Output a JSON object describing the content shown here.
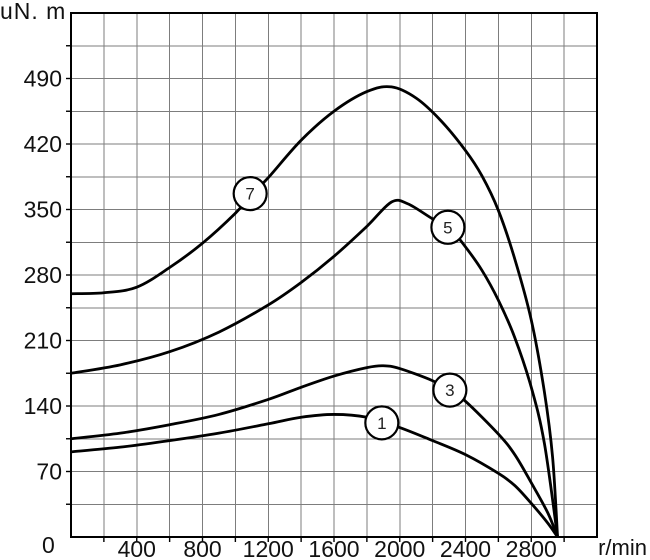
{
  "chart_data": {
    "type": "line",
    "title": "",
    "ylabel": "uN. m",
    "xlabel": "r/min",
    "origin_label": "0",
    "xlim": [
      0,
      3200
    ],
    "ylim": [
      0,
      560
    ],
    "x_grid_step": 200,
    "y_grid_step": 35,
    "grid": true,
    "legend_position": "none",
    "x_ticks": [
      400,
      800,
      1200,
      1600,
      2000,
      2400,
      2800
    ],
    "y_ticks": [
      70,
      140,
      210,
      280,
      350,
      420,
      490
    ],
    "colors": {
      "curve": "#000000",
      "grid": "#7d7d7d",
      "border": "#000000",
      "background": "#ffffff",
      "text": "#111111",
      "marker_fill": "#ffffff"
    },
    "series": [
      {
        "id": "1",
        "label": "1",
        "marker_at": [
          1891,
          122
        ],
        "points": [
          [
            0,
            91
          ],
          [
            300,
            96
          ],
          [
            600,
            103
          ],
          [
            900,
            111
          ],
          [
            1200,
            121
          ],
          [
            1400,
            128
          ],
          [
            1600,
            131
          ],
          [
            1800,
            128
          ],
          [
            2000,
            117
          ],
          [
            2200,
            103
          ],
          [
            2400,
            88
          ],
          [
            2600,
            68
          ],
          [
            2700,
            55
          ],
          [
            2800,
            36
          ],
          [
            2900,
            15
          ],
          [
            2960,
            0
          ]
        ]
      },
      {
        "id": "3",
        "label": "3",
        "marker_at": [
          2305,
          157
        ],
        "points": [
          [
            0,
            105
          ],
          [
            300,
            111
          ],
          [
            600,
            120
          ],
          [
            900,
            131
          ],
          [
            1200,
            147
          ],
          [
            1400,
            160
          ],
          [
            1600,
            172
          ],
          [
            1800,
            181
          ],
          [
            1900,
            183
          ],
          [
            2000,
            180
          ],
          [
            2200,
            167
          ],
          [
            2300,
            157
          ],
          [
            2400,
            145
          ],
          [
            2600,
            110
          ],
          [
            2700,
            88
          ],
          [
            2800,
            58
          ],
          [
            2900,
            26
          ],
          [
            2960,
            0
          ]
        ]
      },
      {
        "id": "5",
        "label": "5",
        "marker_at": [
          2293,
          331
        ],
        "points": [
          [
            0,
            175
          ],
          [
            300,
            184
          ],
          [
            600,
            198
          ],
          [
            900,
            219
          ],
          [
            1200,
            248
          ],
          [
            1400,
            272
          ],
          [
            1600,
            300
          ],
          [
            1800,
            332
          ],
          [
            1950,
            358
          ],
          [
            2050,
            356
          ],
          [
            2200,
            340
          ],
          [
            2300,
            331
          ],
          [
            2400,
            310
          ],
          [
            2500,
            285
          ],
          [
            2600,
            253
          ],
          [
            2700,
            213
          ],
          [
            2800,
            160
          ],
          [
            2880,
            100
          ],
          [
            2960,
            0
          ]
        ]
      },
      {
        "id": "7",
        "label": "7",
        "marker_at": [
          1090,
          367
        ],
        "points": [
          [
            0,
            260
          ],
          [
            200,
            261
          ],
          [
            400,
            267
          ],
          [
            600,
            288
          ],
          [
            800,
            314
          ],
          [
            1000,
            346
          ],
          [
            1100,
            366
          ],
          [
            1200,
            384
          ],
          [
            1400,
            424
          ],
          [
            1600,
            455
          ],
          [
            1800,
            476
          ],
          [
            1950,
            481
          ],
          [
            2100,
            469
          ],
          [
            2250,
            445
          ],
          [
            2400,
            413
          ],
          [
            2500,
            386
          ],
          [
            2600,
            349
          ],
          [
            2700,
            297
          ],
          [
            2800,
            232
          ],
          [
            2880,
            155
          ],
          [
            2930,
            85
          ],
          [
            2960,
            0
          ]
        ]
      }
    ]
  }
}
